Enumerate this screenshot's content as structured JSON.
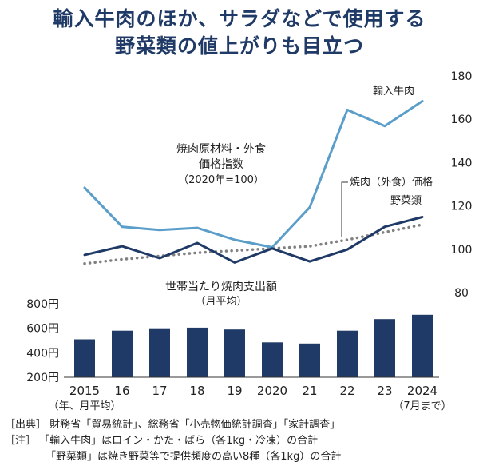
{
  "title": {
    "line1": "輸入牛肉のほか、サラダなどで使用する",
    "line2": "野菜類の値上がりも目立つ"
  },
  "chart_data": [
    {
      "type": "line",
      "title": "焼肉原材料・外食",
      "title_line2": "価格指数",
      "subtitle": "（2020年=100）",
      "x": [
        "2015",
        "16",
        "17",
        "18",
        "19",
        "2020",
        "21",
        "22",
        "23",
        "2024"
      ],
      "y_ticks": [
        "180",
        "160",
        "140",
        "120",
        "100",
        "80"
      ],
      "ylim": [
        80,
        180
      ],
      "series": [
        {
          "name": "輸入牛肉",
          "style": "solid",
          "color": "#5b9ec9",
          "values": [
            128,
            110,
            108.5,
            109.5,
            104,
            100.5,
            119,
            164,
            156.5,
            168
          ]
        },
        {
          "name": "焼肉（外食）価格",
          "style": "dotted",
          "color": "#808080",
          "values": [
            93,
            95,
            96.5,
            98,
            99,
            100,
            101,
            104,
            107.5,
            111
          ]
        },
        {
          "name": "野菜類",
          "style": "solid",
          "color": "#1f3a66",
          "values": [
            97,
            101,
            95.5,
            102.5,
            93.5,
            100,
            94,
            99.5,
            110,
            114.5
          ]
        }
      ]
    },
    {
      "type": "bar",
      "title": "世帯当たり焼肉支出額",
      "subtitle": "（月平均）",
      "categories": [
        "2015",
        "16",
        "17",
        "18",
        "19",
        "2020",
        "21",
        "22",
        "23",
        "2024"
      ],
      "category_sublabels": [
        "（年、月平均）",
        "",
        "",
        "",
        "",
        "",
        "",
        "",
        "",
        "（7月まで）"
      ],
      "values": [
        510,
        580,
        600,
        605,
        590,
        485,
        475,
        580,
        675,
        710
      ],
      "y_ticks": [
        "800円",
        "600円",
        "400円",
        "200円"
      ],
      "ylim": [
        200,
        800
      ],
      "color": "#1f3a66"
    }
  ],
  "notes": {
    "source": "［出典］ 財務省「貿易統計」、総務省「小売物価統計調査」「家計調査」",
    "note1": "［注］ 「輸入牛肉」はロイン・かた・ばら（各1kg・冷凍）の合計",
    "note2": "「野菜類」は焼き野菜等で提供頻度の高い8種（各1kg）の合計"
  }
}
